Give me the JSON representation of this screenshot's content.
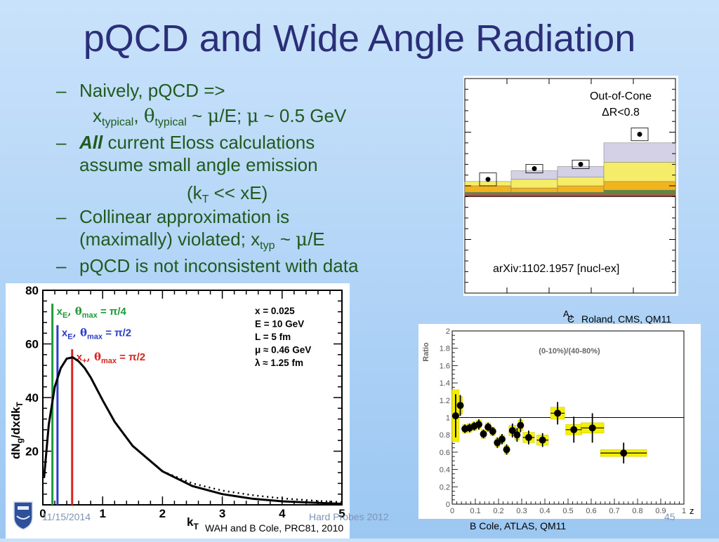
{
  "slide": {
    "title": "pQCD and Wide Angle Radiation",
    "footer_date": "11/15/2014",
    "footer_center": "Hard Probes 2012",
    "page_number": "45"
  },
  "bullets": [
    {
      "dash": "–",
      "text": "Naively, pQCD =>"
    },
    {
      "line2_parts": [
        "x",
        "typical",
        ", ",
        "θ",
        "typical",
        " ~ ",
        "μ",
        "/E; ",
        "μ",
        " ~ 0.5 GeV"
      ]
    },
    {
      "dash": "–",
      "bold_italic": "All",
      "rest": " current Eloss calculations"
    },
    {
      "text": "assume small angle emission"
    },
    {
      "kt_parts": [
        "(k",
        "T",
        " << xE)"
      ]
    },
    {
      "dash": "–",
      "text": "Collinear approximation is"
    },
    {
      "viol_parts": [
        "(maximally) violated; x",
        "typ",
        " ~ ",
        "μ",
        "/E"
      ]
    },
    {
      "dash": "–",
      "text": "pQCD is not inconsistent with data"
    }
  ],
  "captions": {
    "left_plot": "WAH and B Cole, PRC81, 2010",
    "top_right": "Roland, CMS, QM11",
    "top_right_c": "C",
    "bottom_right": "B Cole, ATLAS, QM11"
  },
  "chart_data": [
    {
      "type": "line",
      "id": "cms",
      "title": "Out-of-Cone",
      "subtitle": "ΔR<0.8",
      "annotation": "arXiv:1102.1957 [nucl-ex]",
      "xlabel": "A",
      "xlabel_sub": "J",
      "xlim": [
        0,
        0.5
      ],
      "ylim": [
        -0.45,
        0.55
      ],
      "x_ticks": [
        "0.1",
        "0.2",
        "0.3",
        "0.4"
      ],
      "x_tick_values": [
        0.1,
        0.2,
        0.3,
        0.4
      ],
      "bin_edges": [
        0.0,
        0.11,
        0.22,
        0.33,
        0.5
      ],
      "stack_bins": [
        {
          "red": 0.01,
          "darkgreen": 0.01,
          "orange": 0.03,
          "yellow": 0.02,
          "lavender": 0.0
        },
        {
          "red": 0.01,
          "darkgreen": 0.01,
          "orange": 0.02,
          "yellow": 0.04,
          "lavender": 0.04
        },
        {
          "red": 0.01,
          "darkgreen": 0.01,
          "orange": 0.03,
          "yellow": 0.04,
          "lavender": 0.05
        },
        {
          "red": 0.01,
          "darkgreen": 0.02,
          "orange": 0.04,
          "yellow": 0.09,
          "lavender": 0.09
        }
      ],
      "stack_colors": {
        "red": "#e33b2e",
        "darkgreen": "#5a8a3a",
        "orange": "#f2b41c",
        "yellow": "#f5ed6a",
        "lavender": "#d4d0e6"
      },
      "points": [
        {
          "x": 0.055,
          "y": 0.08,
          "err": 0.03
        },
        {
          "x": 0.165,
          "y": 0.13,
          "err": 0.02
        },
        {
          "x": 0.275,
          "y": 0.15,
          "err": 0.02
        },
        {
          "x": 0.415,
          "y": 0.29,
          "err": 0.03
        }
      ]
    },
    {
      "type": "line",
      "id": "theory",
      "xlabel": "k",
      "xlabel_sub": "T",
      "ylabel": "dN",
      "ylabel_parts": [
        "dN",
        "g",
        "/dxdk",
        "T"
      ],
      "xlim": [
        0,
        5
      ],
      "ylim": [
        0,
        80
      ],
      "x_ticks": [
        "0",
        "1",
        "2",
        "3",
        "4",
        "5"
      ],
      "y_ticks": [
        "20",
        "40",
        "60",
        "80"
      ],
      "x_tick_values": [
        0,
        1,
        2,
        3,
        4,
        5
      ],
      "y_tick_values": [
        20,
        40,
        60,
        80
      ],
      "params": [
        "x = 0.025",
        "E = 10 GeV",
        "L = 5 fm",
        "μ ≈ 0.46 GeV",
        "λ ≈ 1.25 fm"
      ],
      "vlines": [
        {
          "x": 0.16,
          "color": "#1f9a3a",
          "label_main": "x",
          "label_sub": "E",
          "label_rest": ", θ",
          "label_rest_sub": "max",
          "label_end": " = π/4",
          "top": 75
        },
        {
          "x": 0.245,
          "color": "#2b3ec9",
          "label_main": "x",
          "label_sub": "E",
          "label_rest": ", θ",
          "label_rest_sub": "max",
          "label_end": " = π/2",
          "top": 67
        },
        {
          "x": 0.49,
          "color": "#d7261f",
          "label_main": "x",
          "label_sub": "+",
          "label_rest": ", θ",
          "label_rest_sub": "max",
          "label_end": " = π/2",
          "top": 58
        }
      ],
      "series": [
        {
          "style": "solid",
          "x": [
            0.02,
            0.1,
            0.2,
            0.3,
            0.4,
            0.5,
            0.6,
            0.7,
            0.8,
            1.0,
            1.2,
            1.5,
            2.0,
            2.5,
            3.0,
            3.5,
            4.0,
            4.5,
            5.0
          ],
          "y": [
            10,
            30,
            44,
            51,
            54.5,
            55,
            53.5,
            51,
            47.5,
            39,
            31,
            22,
            12.5,
            7,
            4,
            2.3,
            1.3,
            0.8,
            0.4
          ]
        },
        {
          "style": "dotted",
          "x": [
            2.0,
            2.5,
            3.0,
            3.5,
            4.0,
            4.5,
            5.0
          ],
          "y": [
            12.5,
            8,
            5.3,
            3.6,
            2.4,
            1.6,
            1.0
          ]
        }
      ]
    },
    {
      "type": "scatter",
      "id": "atlas",
      "title": "(0-10%)/(40-80%)",
      "ylabel": "Ratio",
      "xlabel": "z",
      "xlim": [
        0,
        1
      ],
      "ylim": [
        0,
        2
      ],
      "x_ticks": [
        "0",
        "0.1",
        "0.2",
        "0.3",
        "0.4",
        "0.5",
        "0.6",
        "0.7",
        "0.8",
        "0.9",
        "1"
      ],
      "y_ticks": [
        "0",
        "0.2",
        "0.4",
        "0.6",
        "0.8",
        "1",
        "1.2",
        "1.4",
        "1.6",
        "1.8",
        "2"
      ],
      "x_tick_values": [
        0,
        0.1,
        0.2,
        0.3,
        0.4,
        0.5,
        0.6,
        0.7,
        0.8,
        0.9,
        1.0
      ],
      "y_tick_values": [
        0,
        0.2,
        0.4,
        0.6,
        0.8,
        1.0,
        1.2,
        1.4,
        1.6,
        1.8,
        2.0
      ],
      "reference_y": 1.0,
      "points": [
        {
          "x": 0.015,
          "y": 1.02,
          "err": 0.25,
          "sys": 0.3,
          "w": 0.015
        },
        {
          "x": 0.035,
          "y": 1.14,
          "err": 0.12,
          "sys": 0.1,
          "w": 0.01
        },
        {
          "x": 0.055,
          "y": 0.87,
          "err": 0.05,
          "sys": 0.05,
          "w": 0.01
        },
        {
          "x": 0.075,
          "y": 0.88,
          "err": 0.05,
          "sys": 0.05,
          "w": 0.01
        },
        {
          "x": 0.095,
          "y": 0.9,
          "err": 0.05,
          "sys": 0.05,
          "w": 0.01
        },
        {
          "x": 0.115,
          "y": 0.92,
          "err": 0.06,
          "sys": 0.05,
          "w": 0.01
        },
        {
          "x": 0.135,
          "y": 0.81,
          "err": 0.05,
          "sys": 0.05,
          "w": 0.01
        },
        {
          "x": 0.155,
          "y": 0.89,
          "err": 0.05,
          "sys": 0.05,
          "w": 0.01
        },
        {
          "x": 0.175,
          "y": 0.84,
          "err": 0.05,
          "sys": 0.05,
          "w": 0.01
        },
        {
          "x": 0.195,
          "y": 0.71,
          "err": 0.06,
          "sys": 0.05,
          "w": 0.01
        },
        {
          "x": 0.215,
          "y": 0.75,
          "err": 0.06,
          "sys": 0.05,
          "w": 0.01
        },
        {
          "x": 0.235,
          "y": 0.63,
          "err": 0.06,
          "sys": 0.05,
          "w": 0.01
        },
        {
          "x": 0.26,
          "y": 0.85,
          "err": 0.08,
          "sys": 0.06,
          "w": 0.015
        },
        {
          "x": 0.28,
          "y": 0.8,
          "err": 0.08,
          "sys": 0.06,
          "w": 0.01
        },
        {
          "x": 0.295,
          "y": 0.91,
          "err": 0.08,
          "sys": 0.06,
          "w": 0.01
        },
        {
          "x": 0.33,
          "y": 0.77,
          "err": 0.08,
          "sys": 0.06,
          "w": 0.025
        },
        {
          "x": 0.39,
          "y": 0.74,
          "err": 0.08,
          "sys": 0.06,
          "w": 0.025
        },
        {
          "x": 0.455,
          "y": 1.05,
          "err": 0.13,
          "sys": 0.07,
          "w": 0.03
        },
        {
          "x": 0.525,
          "y": 0.86,
          "err": 0.15,
          "sys": 0.06,
          "w": 0.035
        },
        {
          "x": 0.605,
          "y": 0.88,
          "err": 0.17,
          "sys": 0.06,
          "w": 0.05
        },
        {
          "x": 0.74,
          "y": 0.59,
          "err": 0.12,
          "sys": 0.04,
          "w": 0.1
        }
      ]
    }
  ]
}
